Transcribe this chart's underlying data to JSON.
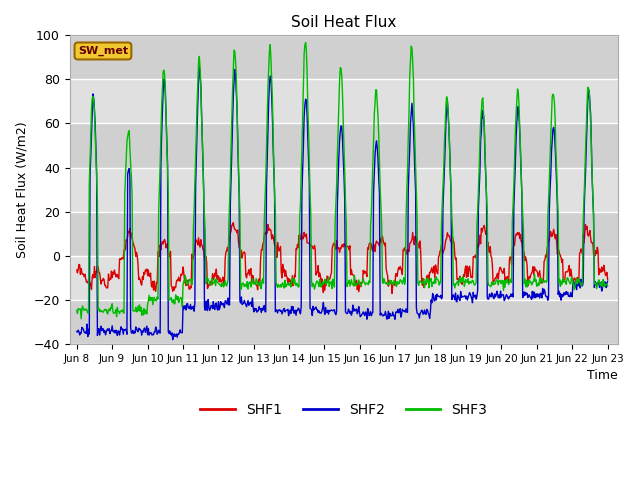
{
  "title": "Soil Heat Flux",
  "ylabel": "Soil Heat Flux (W/m2)",
  "xlabel": "Time",
  "ylim": [
    -40,
    100
  ],
  "annotation": "SW_met",
  "background_color": "#ffffff",
  "plot_bg_color": "#d8d8d8",
  "grid_color": "#ffffff",
  "band_color": "#c8c8c8",
  "line_colors": {
    "SHF1": "#dd0000",
    "SHF2": "#0000cc",
    "SHF3": "#00bb00"
  },
  "xtick_labels": [
    "Jun 8",
    "Jun 9",
    "Jun 10",
    "Jun 11",
    "Jun 12",
    "Jun 13",
    "Jun 14",
    "Jun 15",
    "Jun 16",
    "Jun 17",
    "Jun 18",
    "Jun 19",
    "Jun 20",
    "Jun 21",
    "Jun 22",
    "Jun 23"
  ],
  "ytick_values": [
    -40,
    -20,
    0,
    20,
    40,
    60,
    80,
    100
  ],
  "days": 15,
  "pts_per_day": 48
}
